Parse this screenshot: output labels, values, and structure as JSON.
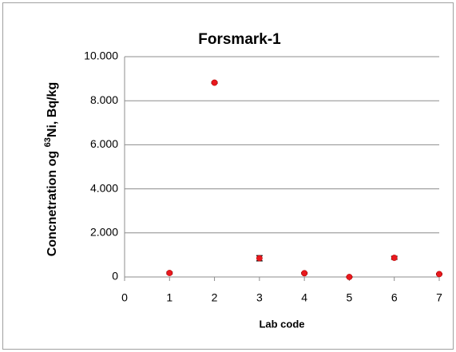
{
  "chart_data": {
    "type": "scatter",
    "title": "Forsmark-1",
    "xlabel": "Lab code",
    "ylabel": {
      "prefix": "Concnetration og ",
      "superscript": "63",
      "suffix": "Ni, Bq/kg"
    },
    "series": [
      {
        "color": "#e8191e",
        "x": [
          1,
          2,
          3,
          4,
          5,
          6,
          7
        ],
        "values": [
          180,
          8820,
          850,
          170,
          0,
          870,
          130
        ],
        "errors": [
          40,
          30,
          120,
          30,
          10,
          70,
          20
        ]
      }
    ],
    "xlim": [
      0,
      7
    ],
    "xticks": [
      0,
      1,
      2,
      3,
      4,
      5,
      6,
      7
    ],
    "ylim": [
      0,
      10000
    ],
    "yticks": [
      0,
      {
        "value": 2000,
        "label": "2.000"
      },
      {
        "value": 4000,
        "label": "4.000"
      },
      {
        "value": 6000,
        "label": "6.000"
      },
      {
        "value": 8000,
        "label": "8.000"
      },
      {
        "value": 10000,
        "label": "10.000"
      }
    ],
    "grid": true
  }
}
